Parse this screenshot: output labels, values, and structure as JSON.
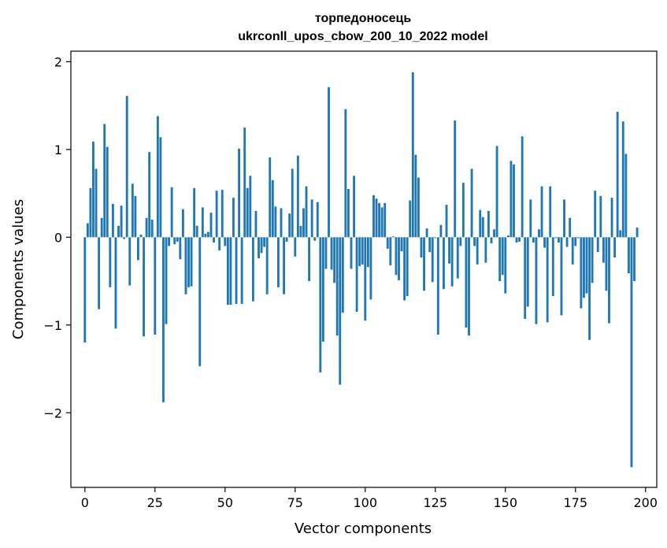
{
  "chart_data": {
    "type": "bar",
    "title": "торпедоносець",
    "subtitle": "ukrconll_upos_cbow_200_10_2022 model",
    "xlabel": "Vector components",
    "ylabel": "Components values",
    "xlim": [
      -5,
      204
    ],
    "ylim": [
      -2.85,
      2.12
    ],
    "xticks": [
      0,
      25,
      50,
      75,
      100,
      125,
      150,
      175,
      200
    ],
    "yticks": [
      -2,
      -1,
      0,
      1,
      2
    ],
    "ytick_labels": [
      "−2",
      "−1",
      "0",
      "1",
      "2"
    ],
    "grid": false,
    "bar_color": "#1f77b4",
    "values": [
      -1.2,
      0.16,
      0.56,
      1.09,
      0.78,
      -0.82,
      0.22,
      1.29,
      1.03,
      -0.57,
      0.38,
      -1.04,
      0.13,
      0.36,
      -0.02,
      1.61,
      -0.55,
      0.61,
      0.47,
      -0.26,
      0.03,
      -1.13,
      0.22,
      0.97,
      0.2,
      -1.11,
      1.38,
      1.14,
      -1.88,
      -0.99,
      -0.1,
      0.57,
      -0.08,
      -0.05,
      -0.25,
      0.32,
      -0.65,
      -0.57,
      -0.56,
      0.56,
      0.13,
      -1.47,
      0.34,
      0.04,
      0.06,
      0.28,
      -0.06,
      0.53,
      -0.15,
      0.54,
      -0.1,
      -0.77,
      -0.77,
      0.45,
      -0.76,
      1.01,
      -0.76,
      1.25,
      0.56,
      0.7,
      -0.73,
      0.3,
      -0.24,
      -0.18,
      -0.11,
      -0.65,
      0.91,
      0.65,
      0.35,
      -0.57,
      0.33,
      -0.65,
      -0.05,
      0.27,
      0.78,
      -0.22,
      0.93,
      0.13,
      0.33,
      0.58,
      -0.5,
      0.43,
      -0.04,
      0.4,
      -1.54,
      -1.19,
      -0.36,
      1.71,
      -0.37,
      -0.52,
      -1.12,
      -1.68,
      -0.86,
      1.46,
      0.55,
      -0.36,
      0.7,
      -0.85,
      -0.33,
      -0.31,
      -0.95,
      -0.34,
      -0.71,
      0.48,
      0.44,
      0.39,
      0.34,
      0.39,
      -0.13,
      -0.32,
      0.01,
      -0.43,
      -0.49,
      -0.16,
      -0.72,
      -0.67,
      0.42,
      1.88,
      0.94,
      0.68,
      -0.23,
      -0.61,
      0.1,
      -0.17,
      -0.51,
      -0.01,
      -1.11,
      0.14,
      -0.59,
      0.37,
      -0.3,
      -0.56,
      1.33,
      -0.47,
      -0.1,
      0.62,
      -1.03,
      -1.12,
      0.78,
      -0.1,
      -0.31,
      0.31,
      0.23,
      -0.29,
      0.3,
      -0.07,
      0.09,
      1.04,
      -0.5,
      -0.43,
      -0.64,
      0.02,
      0.87,
      0.83,
      -0.06,
      -0.05,
      1.15,
      -0.93,
      -0.79,
      0.43,
      -0.06,
      -0.99,
      0.09,
      0.58,
      -0.12,
      -0.97,
      0.58,
      -0.67,
      -0.01,
      -0.06,
      -0.89,
      0.43,
      -0.11,
      0.22,
      -0.31,
      -0.1,
      -0.01,
      -0.81,
      -0.69,
      -0.64,
      -1.17,
      -0.52,
      0.53,
      -0.17,
      0.47,
      -0.29,
      -0.61,
      -0.98,
      0.45,
      -0.23,
      1.43,
      0.08,
      1.32,
      0.95,
      -0.41,
      -2.62,
      -0.5,
      0.11
    ]
  }
}
